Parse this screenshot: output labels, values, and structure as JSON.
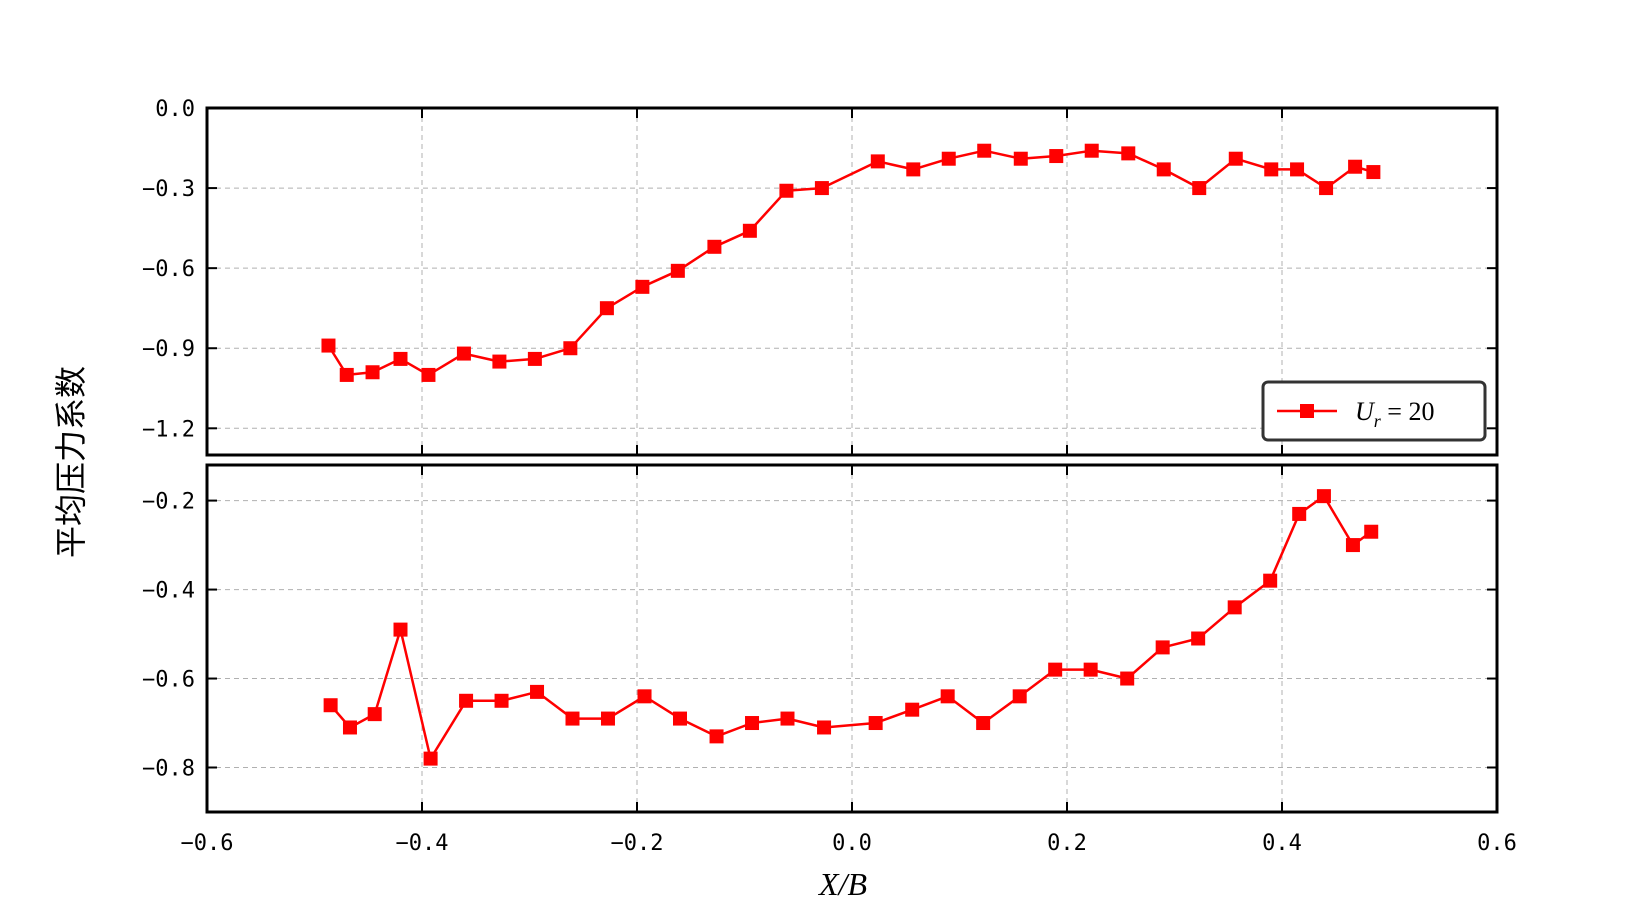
{
  "chart_data": [
    {
      "type": "line",
      "panel": "top",
      "ylabel": "平均压力系数",
      "xlabel": "X/B",
      "xlim": [
        -0.6,
        0.6
      ],
      "ylim": [
        -1.3,
        0.0
      ],
      "x_ticks": [
        -0.6,
        -0.4,
        -0.2,
        0.0,
        0.2,
        0.4,
        0.6
      ],
      "x_tick_labels": [
        "−0.6",
        "−0.4",
        "−0.2",
        "0.0",
        "0.2",
        "0.4",
        "0.6"
      ],
      "y_ticks": [
        0.0,
        -0.3,
        -0.6,
        -0.9,
        -1.2
      ],
      "y_tick_labels": [
        "0.0",
        "−0.3",
        "−0.6",
        "−0.9",
        "−1.2"
      ],
      "grid": true,
      "legend": {
        "position": "lower-right",
        "label_main": "U",
        "label_sub": "r",
        "label_rest": "= 20"
      },
      "series": [
        {
          "name": "U_r = 20",
          "color": "#ff0000",
          "marker": "square",
          "x": [
            -0.487,
            -0.47,
            -0.446,
            -0.42,
            -0.394,
            -0.361,
            -0.328,
            -0.295,
            -0.262,
            -0.228,
            -0.195,
            -0.162,
            -0.128,
            -0.095,
            -0.061,
            -0.028,
            0.024,
            0.057,
            0.09,
            0.123,
            0.157,
            0.19,
            0.223,
            0.257,
            0.29,
            0.323,
            0.357,
            0.39,
            0.414,
            0.441,
            0.468,
            0.485
          ],
          "values": [
            -0.89,
            -1.0,
            -0.99,
            -0.94,
            -1.0,
            -0.92,
            -0.95,
            -0.94,
            -0.9,
            -0.75,
            -0.67,
            -0.61,
            -0.52,
            -0.46,
            -0.31,
            -0.3,
            -0.2,
            -0.23,
            -0.19,
            -0.16,
            -0.19,
            -0.18,
            -0.16,
            -0.17,
            -0.23,
            -0.3,
            -0.19,
            -0.23,
            -0.23,
            -0.3,
            -0.22,
            -0.24
          ]
        }
      ]
    },
    {
      "type": "line",
      "panel": "bottom",
      "xlim": [
        -0.6,
        0.6
      ],
      "ylim": [
        -0.9,
        -0.12
      ],
      "x_ticks": [
        -0.6,
        -0.4,
        -0.2,
        0.0,
        0.2,
        0.4,
        0.6
      ],
      "y_ticks": [
        -0.2,
        -0.4,
        -0.6,
        -0.8
      ],
      "y_tick_labels": [
        "−0.2",
        "−0.4",
        "−0.6",
        "−0.8"
      ],
      "grid": true,
      "series": [
        {
          "name": "U_r = 20",
          "color": "#ff0000",
          "marker": "square",
          "x": [
            -0.485,
            -0.467,
            -0.444,
            -0.42,
            -0.392,
            -0.359,
            -0.326,
            -0.293,
            -0.26,
            -0.227,
            -0.193,
            -0.16,
            -0.126,
            -0.093,
            -0.06,
            -0.026,
            0.022,
            0.056,
            0.089,
            0.122,
            0.156,
            0.189,
            0.222,
            0.256,
            0.289,
            0.322,
            0.356,
            0.389,
            0.416,
            0.439,
            0.466,
            0.483
          ],
          "values": [
            -0.66,
            -0.71,
            -0.68,
            -0.49,
            -0.78,
            -0.65,
            -0.65,
            -0.63,
            -0.69,
            -0.69,
            -0.64,
            -0.69,
            -0.73,
            -0.7,
            -0.69,
            -0.71,
            -0.7,
            -0.67,
            -0.64,
            -0.7,
            -0.64,
            -0.58,
            -0.58,
            -0.6,
            -0.53,
            -0.51,
            -0.44,
            -0.38,
            -0.23,
            -0.19,
            -0.3,
            -0.27
          ]
        }
      ]
    }
  ]
}
